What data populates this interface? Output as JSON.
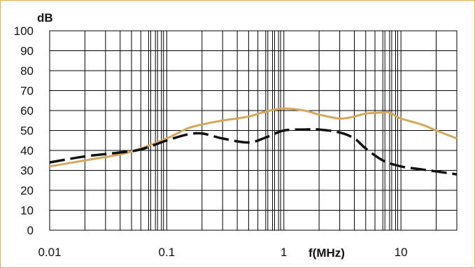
{
  "chart_data": {
    "type": "line",
    "xscale": "log",
    "xlim": [
      0.01,
      30
    ],
    "ylim": [
      0,
      100
    ],
    "xlabel": "f(MHz)",
    "ylabel": "dB",
    "grid": true,
    "legend": "none",
    "y_ticks": [
      0,
      10,
      20,
      30,
      40,
      50,
      60,
      70,
      80,
      90,
      100
    ],
    "y_tick_labels": [
      "0",
      "10",
      "20",
      "30",
      "40",
      "50",
      "60",
      "70",
      "80",
      "90",
      "100"
    ],
    "x_ticks": [
      0.01,
      0.1,
      1,
      10
    ],
    "x_tick_labels": [
      "0.01",
      "0.1",
      "1",
      "10"
    ],
    "series": [
      {
        "style": "solid",
        "color": "#d6a65a",
        "points": [
          [
            0.01,
            32
          ],
          [
            0.02,
            35
          ],
          [
            0.04,
            38
          ],
          [
            0.06,
            41
          ],
          [
            0.1,
            46
          ],
          [
            0.15,
            51
          ],
          [
            0.2,
            53
          ],
          [
            0.3,
            55
          ],
          [
            0.5,
            57
          ],
          [
            0.7,
            59.5
          ],
          [
            1,
            61
          ],
          [
            1.5,
            60
          ],
          [
            2,
            58
          ],
          [
            3,
            56
          ],
          [
            4,
            57
          ],
          [
            5,
            58.5
          ],
          [
            7,
            59
          ],
          [
            8,
            59
          ],
          [
            10,
            56
          ],
          [
            15,
            53
          ],
          [
            20,
            50
          ],
          [
            30,
            46
          ]
        ]
      },
      {
        "style": "dashed",
        "color": "#111111",
        "points": [
          [
            0.01,
            34
          ],
          [
            0.02,
            37
          ],
          [
            0.04,
            39
          ],
          [
            0.06,
            40.5
          ],
          [
            0.1,
            45
          ],
          [
            0.15,
            48
          ],
          [
            0.2,
            48.5
          ],
          [
            0.3,
            46
          ],
          [
            0.5,
            44
          ],
          [
            0.7,
            46.5
          ],
          [
            1,
            50
          ],
          [
            1.5,
            50.5
          ],
          [
            2,
            50.5
          ],
          [
            3,
            49
          ],
          [
            4,
            46
          ],
          [
            5,
            41
          ],
          [
            7,
            35
          ],
          [
            10,
            32
          ],
          [
            15,
            30.5
          ],
          [
            20,
            29.5
          ],
          [
            30,
            28
          ]
        ]
      }
    ]
  }
}
